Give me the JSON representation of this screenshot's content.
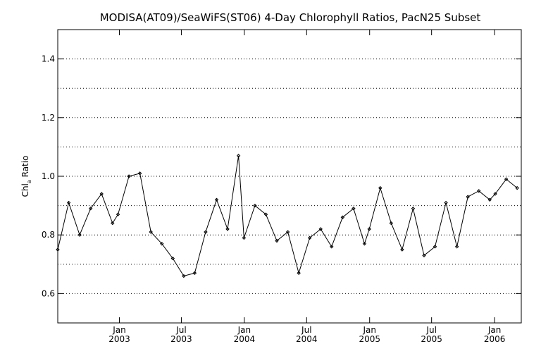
{
  "chart_data": {
    "type": "line",
    "title": "MODISA(AT09)/SeaWiFS(ST06) 4-Day Chlorophyll Ratios, PacN25 Subset",
    "ylabel_main": "Chl",
    "ylabel_sub": "a",
    "ylabel_suffix": " Ratio",
    "ylim": [
      0.5,
      1.5
    ],
    "yticks": [
      0.6,
      0.8,
      1.0,
      1.2,
      1.4
    ],
    "ytick_labels": [
      "0.6",
      "0.8",
      "1.0",
      "1.2",
      "1.4"
    ],
    "ygrid": [
      0.6,
      0.7,
      0.8,
      0.9,
      1.0,
      1.1,
      1.2,
      1.3,
      1.4
    ],
    "xlim": [
      "2002-07-05",
      "2006-03-20"
    ],
    "xticks": [
      {
        "date": "2003-01-01",
        "month": "Jan",
        "year": "2003"
      },
      {
        "date": "2003-07-01",
        "month": "Jul",
        "year": "2003"
      },
      {
        "date": "2004-01-01",
        "month": "Jan",
        "year": "2004"
      },
      {
        "date": "2004-07-01",
        "month": "Jul",
        "year": "2004"
      },
      {
        "date": "2005-01-01",
        "month": "Jan",
        "year": "2005"
      },
      {
        "date": "2005-07-01",
        "month": "Jul",
        "year": "2005"
      },
      {
        "date": "2006-01-01",
        "month": "Jan",
        "year": "2006"
      }
    ],
    "grid": "dotted horizontal",
    "series": [
      {
        "x": [
          "2002-07-05",
          "2002-08-06",
          "2002-09-07",
          "2002-10-09",
          "2002-11-10",
          "2002-12-12",
          "2002-12-28",
          "2003-01-29",
          "2003-03-02",
          "2003-04-03",
          "2003-05-05",
          "2003-06-06",
          "2003-07-08",
          "2003-08-09",
          "2003-09-10",
          "2003-10-12",
          "2003-11-13",
          "2003-12-15",
          "2003-12-31",
          "2004-02-01",
          "2004-03-04",
          "2004-04-05",
          "2004-05-07",
          "2004-06-08",
          "2004-07-10",
          "2004-08-11",
          "2004-09-12",
          "2004-10-14",
          "2004-11-15",
          "2004-12-17",
          "2004-12-31",
          "2005-02-01",
          "2005-03-05",
          "2005-04-06",
          "2005-05-08",
          "2005-06-09",
          "2005-07-11",
          "2005-08-12",
          "2005-09-13",
          "2005-10-15",
          "2005-11-16",
          "2005-12-18",
          "2006-01-03",
          "2006-02-04",
          "2006-03-08"
        ],
        "y": [
          0.75,
          0.91,
          0.8,
          0.89,
          0.94,
          0.84,
          0.87,
          1.0,
          1.01,
          0.81,
          0.77,
          0.72,
          0.66,
          0.67,
          0.81,
          0.92,
          0.82,
          1.07,
          0.79,
          0.9,
          0.87,
          0.78,
          0.81,
          0.67,
          0.79,
          0.82,
          0.76,
          0.86,
          0.89,
          0.77,
          0.82,
          0.96,
          0.84,
          0.75,
          0.89,
          0.73,
          0.76,
          0.91,
          0.76,
          0.93,
          0.95,
          0.92,
          0.94,
          0.99,
          0.96
        ]
      }
    ]
  }
}
